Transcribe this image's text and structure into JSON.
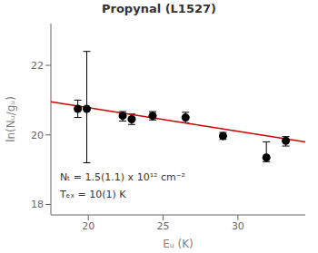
{
  "chart_data": {
    "type": "scatter",
    "title": "Propynal (L1527)",
    "xlabel": "Eᵤ (K)",
    "ylabel": "ln(Nᵤ/gᵤ)",
    "xlim": [
      17.5,
      34.5
    ],
    "ylim": [
      17.7,
      23.2
    ],
    "xticks": [
      20,
      25,
      30
    ],
    "yticks": [
      18,
      20,
      22
    ],
    "series": [
      {
        "type": "line",
        "color": "#cc0000",
        "x": [
          17.5,
          34.5
        ],
        "values": [
          20.95,
          19.8
        ]
      },
      {
        "type": "scatter",
        "color": "black",
        "marker": "circle",
        "x": [
          19.3,
          19.9,
          22.3,
          22.9,
          24.3,
          26.5,
          29.0,
          31.9,
          33.2
        ],
        "values": [
          20.75,
          20.75,
          20.55,
          20.45,
          20.55,
          20.5,
          19.97,
          19.35,
          19.83
        ],
        "error_lo": [
          0.25,
          1.55,
          0.15,
          0.15,
          0.12,
          0.15,
          0.1,
          0.12,
          0.15
        ],
        "error_hi": [
          0.25,
          1.65,
          0.12,
          0.15,
          0.12,
          0.15,
          0.1,
          0.45,
          0.12
        ]
      }
    ],
    "annotations": [
      {
        "text": "Nₜ = 1.5(1.1) x 10¹² cm⁻²",
        "x": 18.1,
        "y": 18.7
      },
      {
        "text": "Tₑₓ = 10(1) K",
        "x": 18.1,
        "y": 18.2
      }
    ]
  }
}
